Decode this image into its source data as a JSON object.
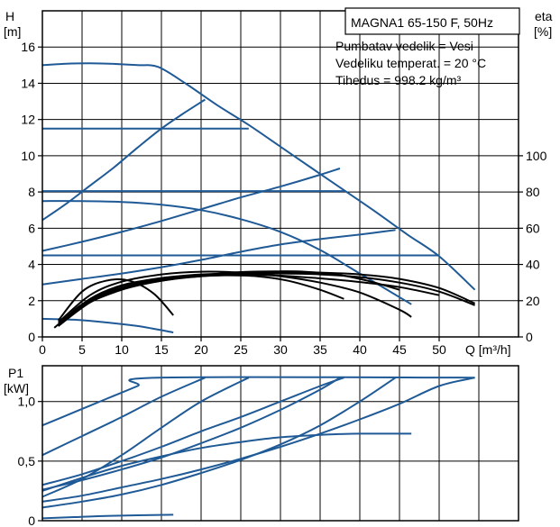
{
  "chart_data": [
    {
      "type": "line",
      "id": "head",
      "title": "MAGNA1 65-150 F, 50Hz",
      "ylabel": "H",
      "ylabel_unit": "[m]",
      "y2label": "eta",
      "y2label_unit": "[%]",
      "xlabel": "Q [m³/h]",
      "xlim": [
        0,
        60
      ],
      "ylim": [
        0,
        18
      ],
      "y2lim": [
        0,
        100
      ],
      "x_ticks": [
        "0",
        "5",
        "10",
        "15",
        "20",
        "25",
        "30",
        "35",
        "40",
        "45",
        "50"
      ],
      "y_ticks": [
        "0",
        "2",
        "4",
        "6",
        "8",
        "10",
        "12",
        "14",
        "16"
      ],
      "y2_ticks": [
        "0",
        "20",
        "40",
        "60",
        "80",
        "100"
      ],
      "grid": true,
      "info_lines": [
        "Pumbatav vedelik = Vesi",
        "Vedeliku temperat. = 20 °C",
        "Tihedus = 998.2 kg/m³"
      ],
      "colors": {
        "curve": "#1f5a96",
        "efficiency": "#000000",
        "grid": "#000000"
      },
      "head_series": [
        {
          "x": [
            0,
            3,
            6,
            9,
            12,
            14.6,
            18,
            22,
            26,
            30,
            34,
            38,
            42,
            46,
            50,
            54.5
          ],
          "y": [
            15.0,
            15.08,
            15.1,
            15.07,
            15.0,
            14.9,
            14.0,
            12.8,
            11.7,
            10.5,
            9.3,
            8.1,
            6.9,
            5.65,
            4.45,
            2.6
          ]
        },
        {
          "x": [
            0,
            3,
            6,
            9,
            12,
            15,
            18,
            20.5
          ],
          "y": [
            6.45,
            7.35,
            8.35,
            9.35,
            10.45,
            11.5,
            12.4,
            13.1
          ]
        },
        {
          "x": [
            0,
            5,
            10,
            15,
            20,
            25,
            26
          ],
          "y": [
            11.5,
            11.5,
            11.5,
            11.5,
            11.5,
            11.5,
            11.5
          ]
        },
        {
          "x": [
            0,
            5,
            10,
            15,
            20,
            25,
            30,
            35,
            37.5
          ],
          "y": [
            4.75,
            5.25,
            5.8,
            6.4,
            7.05,
            7.7,
            8.3,
            8.95,
            9.3
          ]
        },
        {
          "x": [
            0,
            5,
            10,
            15,
            20,
            25,
            30,
            35,
            38
          ],
          "y": [
            8.05,
            8.05,
            8.05,
            8.05,
            8.05,
            8.05,
            8.05,
            8.05,
            8.05
          ]
        },
        {
          "x": [
            0,
            5,
            10,
            15,
            20,
            25,
            30,
            35,
            40,
            44.5
          ],
          "y": [
            2.9,
            3.2,
            3.5,
            3.85,
            4.25,
            4.7,
            5.1,
            5.4,
            5.65,
            5.9
          ]
        },
        {
          "x": [
            0,
            5,
            10,
            15,
            20,
            25,
            30,
            35,
            40,
            45,
            50
          ],
          "y": [
            4.5,
            4.5,
            4.5,
            4.5,
            4.5,
            4.5,
            4.5,
            4.5,
            4.5,
            4.5,
            4.5
          ]
        },
        {
          "x": [
            0,
            5,
            10,
            15,
            20,
            25,
            30,
            35,
            40,
            46.5
          ],
          "y": [
            7.5,
            7.5,
            7.45,
            7.3,
            7.0,
            6.5,
            5.8,
            4.8,
            3.5,
            1.8
          ]
        },
        {
          "x": [
            0,
            4,
            8,
            12,
            16.5
          ],
          "y": [
            1.0,
            0.95,
            0.8,
            0.6,
            0.25
          ]
        }
      ],
      "efficiency_series": [
        {
          "x": [
            2,
            5,
            8,
            11,
            14,
            16.5
          ],
          "y": [
            9,
            25,
            31,
            31,
            24,
            12
          ]
        },
        {
          "x": [
            2,
            6,
            10,
            15,
            20,
            25,
            30,
            35,
            40,
            45,
            46.5
          ],
          "y": [
            8,
            23,
            30.5,
            34.5,
            36,
            35.5,
            33.5,
            30,
            24.5,
            15,
            11
          ]
        },
        {
          "x": [
            2,
            6,
            10,
            15,
            20,
            25,
            30,
            35,
            40,
            45,
            50,
            54.5
          ],
          "y": [
            7,
            21,
            28.5,
            32.5,
            34.5,
            35,
            35,
            34.5,
            33,
            30,
            25,
            17.5
          ]
        },
        {
          "x": [
            2,
            6,
            10,
            15,
            20,
            25,
            30,
            35,
            40,
            45,
            50,
            54.5
          ],
          "y": [
            6,
            20,
            28,
            32,
            34,
            35.3,
            35.8,
            35.5,
            34.5,
            32,
            27,
            18.5
          ]
        },
        {
          "x": [
            1.5,
            5,
            10,
            15,
            20,
            25,
            30,
            33,
            37,
            41,
            45
          ],
          "y": [
            5,
            17,
            26,
            31,
            34,
            35.8,
            36.2,
            36,
            34.5,
            31,
            26
          ]
        },
        {
          "x": [
            2,
            6,
            10,
            15,
            20,
            23,
            27,
            31,
            35,
            38
          ],
          "y": [
            6,
            19,
            26.5,
            31,
            33.5,
            34,
            33.5,
            31,
            26,
            21
          ]
        },
        {
          "x": [
            2,
            5,
            10,
            15,
            20,
            25,
            30,
            35,
            40,
            45,
            50
          ],
          "y": [
            6,
            18,
            27,
            31.5,
            33.5,
            34.3,
            33.8,
            32.3,
            30.3,
            27.5,
            23
          ]
        }
      ]
    },
    {
      "type": "line",
      "id": "power",
      "ylabel": "P1",
      "ylabel_unit": "[kW]",
      "xlim": [
        0,
        60
      ],
      "ylim": [
        0,
        1.3
      ],
      "y_ticks": [
        "0",
        "0,5",
        "1,0"
      ],
      "grid": true,
      "colors": {
        "curve": "#1f5a96"
      },
      "series": [
        {
          "x": [
            0,
            4,
            8,
            12,
            14.6,
            54.5
          ],
          "y": [
            0.8,
            0.91,
            1.02,
            1.13,
            1.2,
            1.2
          ]
        },
        {
          "x": [
            0,
            5,
            10,
            15,
            20.5
          ],
          "y": [
            0.55,
            0.71,
            0.87,
            1.04,
            1.2
          ]
        },
        {
          "x": [
            0,
            5,
            10,
            15,
            20,
            26
          ],
          "y": [
            0.2,
            0.35,
            0.55,
            0.78,
            1.0,
            1.2
          ]
        },
        {
          "x": [
            0,
            5,
            10,
            15,
            20,
            25,
            30,
            35,
            37.5
          ],
          "y": [
            0.26,
            0.34,
            0.43,
            0.53,
            0.65,
            0.78,
            0.93,
            1.1,
            1.2
          ]
        },
        {
          "x": [
            0,
            5,
            10,
            15,
            20,
            25,
            30,
            35,
            38
          ],
          "y": [
            0.3,
            0.39,
            0.5,
            0.62,
            0.75,
            0.87,
            1.0,
            1.13,
            1.2
          ]
        },
        {
          "x": [
            0,
            5,
            10,
            15,
            20,
            25,
            30,
            35,
            40,
            44.5
          ],
          "y": [
            0.11,
            0.16,
            0.22,
            0.3,
            0.4,
            0.51,
            0.64,
            0.8,
            1.0,
            1.2
          ]
        },
        {
          "x": [
            0,
            5,
            10,
            15,
            20,
            25,
            30,
            35,
            40,
            45,
            50,
            54.5
          ],
          "y": [
            0.16,
            0.21,
            0.28,
            0.35,
            0.43,
            0.52,
            0.62,
            0.73,
            0.85,
            0.98,
            1.13,
            1.2
          ]
        },
        {
          "x": [
            0,
            5,
            10,
            15,
            20,
            25,
            30,
            35,
            40,
            46.5
          ],
          "y": [
            0.25,
            0.36,
            0.46,
            0.54,
            0.61,
            0.66,
            0.7,
            0.72,
            0.73,
            0.73
          ]
        },
        {
          "x": [
            0,
            4,
            8,
            12,
            16.5
          ],
          "y": [
            0.02,
            0.03,
            0.04,
            0.045,
            0.05
          ]
        }
      ]
    }
  ]
}
